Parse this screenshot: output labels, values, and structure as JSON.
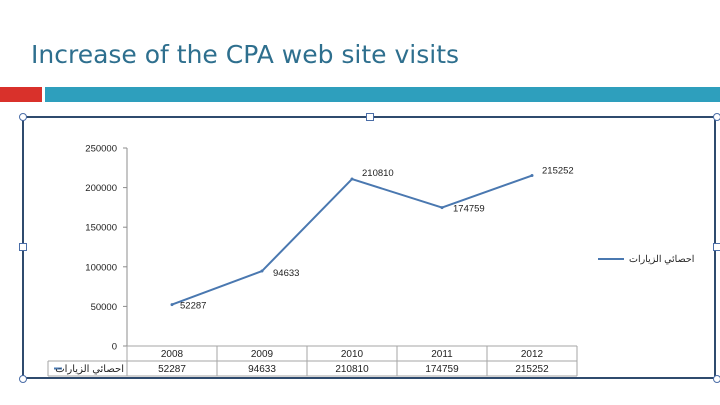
{
  "slide": {
    "title": "Increase of the CPA web site visits",
    "title_color": "#2e6f8e",
    "accent_red": "#d9312b",
    "accent_blue": "#2e9fbd"
  },
  "chart_data": {
    "type": "line",
    "title": "",
    "xlabel": "",
    "ylabel": "",
    "categories": [
      "2008",
      "2009",
      "2010",
      "2011",
      "2012"
    ],
    "series": [
      {
        "name": "احصائي الزيارات",
        "values": [
          52287,
          94633,
          210810,
          174759,
          215252
        ],
        "color": "#4a78b0"
      }
    ],
    "data_labels": [
      "52287",
      "94633",
      "210810",
      "174759",
      "215252"
    ],
    "table_values": [
      "52287",
      "94633",
      "210810",
      "174759",
      "215252"
    ],
    "y_ticks": [
      0,
      50000,
      100000,
      150000,
      200000,
      250000
    ],
    "y_tick_labels": [
      "0",
      "50000",
      "100000",
      "150000",
      "200000",
      "250000"
    ],
    "ylim": [
      0,
      250000
    ],
    "grid": false,
    "legend_position": "right",
    "legend_label": "احصائي الزيارات",
    "table_row_label": "احصائي الزيارات"
  }
}
